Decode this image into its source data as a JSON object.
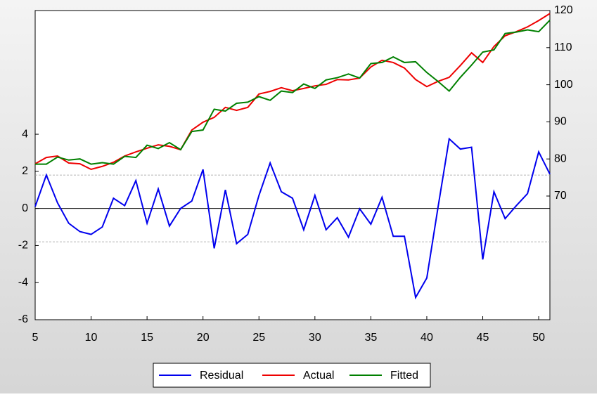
{
  "chart_data": {
    "type": "line",
    "x": [
      5,
      6,
      7,
      8,
      9,
      10,
      11,
      12,
      13,
      14,
      15,
      16,
      17,
      18,
      19,
      20,
      21,
      22,
      23,
      24,
      25,
      26,
      27,
      28,
      29,
      30,
      31,
      32,
      33,
      34,
      35,
      36,
      37,
      38,
      39,
      40,
      41,
      42,
      43,
      44,
      45,
      46,
      47,
      48,
      49,
      50,
      51
    ],
    "series": [
      {
        "name": "Residual",
        "color": "#0000ee",
        "axis": "y",
        "values": [
          0.1,
          1.8,
          0.3,
          -0.8,
          -1.25,
          -1.4,
          -1.0,
          0.55,
          0.15,
          1.5,
          -0.8,
          1.05,
          -0.95,
          0,
          0.4,
          2.1,
          -2.15,
          1.0,
          -1.9,
          -1.4,
          0.7,
          2.45,
          0.9,
          0.55,
          -1.15,
          0.7,
          -1.15,
          -0.5,
          -1.55,
          -0.02,
          -0.85,
          0.6,
          -1.5,
          -1.5,
          -4.8,
          -3.75,
          0.05,
          3.75,
          3.2,
          3.3,
          -2.75,
          0.9,
          -0.55,
          0.15,
          0.8,
          3.05,
          1.85
        ]
      },
      {
        "name": "Actual",
        "color": "#ee0000",
        "axis": "y2",
        "values": [
          78.7,
          80.4,
          80.8,
          78.9,
          78.7,
          77.2,
          78.0,
          79.1,
          80.8,
          81.9,
          82.9,
          83.8,
          83.4,
          82.5,
          87.8,
          89.9,
          91.2,
          93.9,
          93.1,
          93.9,
          97.5,
          98.2,
          99.2,
          98.4,
          99.0,
          99.7,
          100.1,
          101.4,
          101.3,
          101.8,
          104.8,
          106.6,
          106.0,
          104.5,
          101.4,
          99.5,
          100.9,
          102.0,
          105.2,
          108.6,
          106.0,
          110.3,
          113.2,
          114.3,
          115.6,
          117.3,
          119.2
        ]
      },
      {
        "name": "Fitted",
        "color": "#008000",
        "axis": "y2",
        "values": [
          78.6,
          78.6,
          80.5,
          79.7,
          80.0,
          78.6,
          79.0,
          78.6,
          80.7,
          80.4,
          83.7,
          82.8,
          84.4,
          82.5,
          87.4,
          87.8,
          93.4,
          92.9,
          95.0,
          95.3,
          96.8,
          95.8,
          98.3,
          97.9,
          100.2,
          99.0,
          101.3,
          101.9,
          102.9,
          101.8,
          105.7,
          106.0,
          107.5,
          106.0,
          106.2,
          103.3,
          100.9,
          98.3,
          102.0,
          105.3,
          108.8,
          109.4,
          113.8,
          114.2,
          114.8,
          114.3,
          117.4
        ]
      }
    ],
    "xlim": [
      5,
      51
    ],
    "xticks": [
      5,
      10,
      15,
      20,
      25,
      30,
      35,
      40,
      45,
      50
    ],
    "ylim": [
      -6,
      10.67
    ],
    "yticks": [
      -6,
      -4,
      -2,
      0,
      2,
      4
    ],
    "y2lim": [
      36.67,
      120
    ],
    "y2ticks": [
      70,
      80,
      90,
      100,
      110,
      120
    ],
    "hlines": [
      {
        "value": 0,
        "style": "solid"
      },
      {
        "value": 1.8,
        "style": "dashed"
      },
      {
        "value": -1.8,
        "style": "dashed"
      }
    ],
    "legend": "bottom"
  }
}
